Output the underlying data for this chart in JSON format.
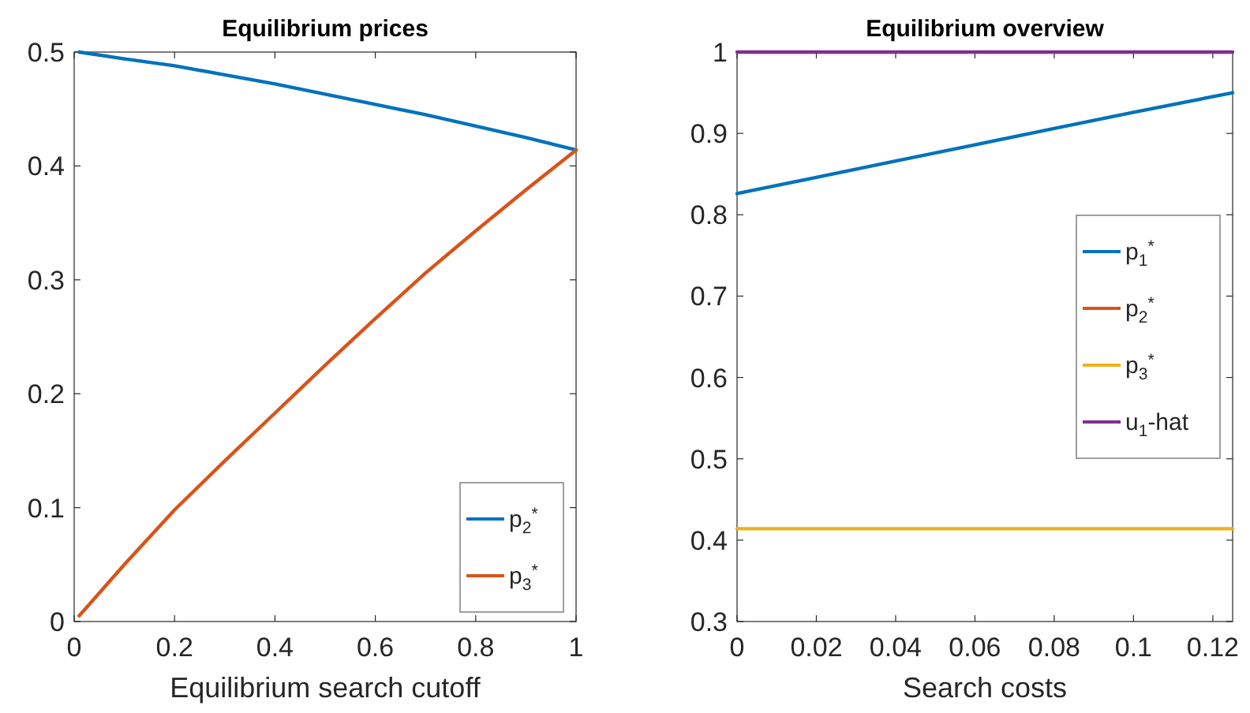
{
  "chart_data": [
    {
      "type": "line",
      "title": "Equilibrium prices",
      "xlabel": "Equilibrium search cutoff",
      "x": [
        0.01,
        0.1,
        0.2,
        0.3,
        0.4,
        0.5,
        0.6,
        0.7,
        0.8,
        0.9,
        1
      ],
      "xlim": [
        0,
        1
      ],
      "xticks": [
        0,
        0.2,
        0.4,
        0.6,
        0.8,
        1
      ],
      "ylim": [
        0,
        0.5
      ],
      "yticks": [
        0,
        0.1,
        0.2,
        0.3,
        0.4,
        0.5
      ],
      "grid": false,
      "legend": "bottom right",
      "series": [
        {
          "name": "p$_{2}$$^{*}$",
          "color": "#0072bd",
          "values": [
            0.5,
            0.494,
            0.488,
            0.48,
            0.472,
            0.463,
            0.454,
            0.445,
            0.435,
            0.425,
            0.414
          ]
        },
        {
          "name": "p$_{3}$$^{*}$",
          "color": "#d95319",
          "values": [
            0.005,
            0.05,
            0.098,
            0.141,
            0.183,
            0.225,
            0.266,
            0.306,
            0.343,
            0.379,
            0.414
          ]
        }
      ]
    },
    {
      "type": "line",
      "title": "Equilibrium overview",
      "xlabel": "Search costs",
      "x": [
        0,
        0.02,
        0.04,
        0.06,
        0.08,
        0.1,
        0.125
      ],
      "xlim": [
        0,
        0.125
      ],
      "xticks": [
        0,
        0.02,
        0.04,
        0.06,
        0.08,
        0.1,
        0.12
      ],
      "ylim": [
        0.3,
        1
      ],
      "yticks": [
        0.3,
        0.4,
        0.5,
        0.6,
        0.7,
        0.8,
        0.9,
        1
      ],
      "grid": false,
      "legend": "right",
      "series": [
        {
          "name": "p$_{1}$$^{*}$",
          "color": "#0072bd",
          "values": [
            0.826,
            0.846,
            0.866,
            0.886,
            0.906,
            0.926,
            0.95
          ]
        },
        {
          "name": "p$_{2}$$^{*}$",
          "color": "#d95319",
          "values": [
            null,
            null,
            null,
            null,
            null,
            null,
            null
          ]
        },
        {
          "name": "p$_{3}$$^{*}$",
          "color": "#edb120",
          "values": [
            0.414,
            0.414,
            0.414,
            0.414,
            0.414,
            0.414,
            0.414
          ]
        },
        {
          "name": "u$_{1}$-hat",
          "color": "#7e2f8e",
          "values": [
            1,
            1,
            1,
            1,
            1,
            1,
            1
          ]
        }
      ]
    }
  ]
}
